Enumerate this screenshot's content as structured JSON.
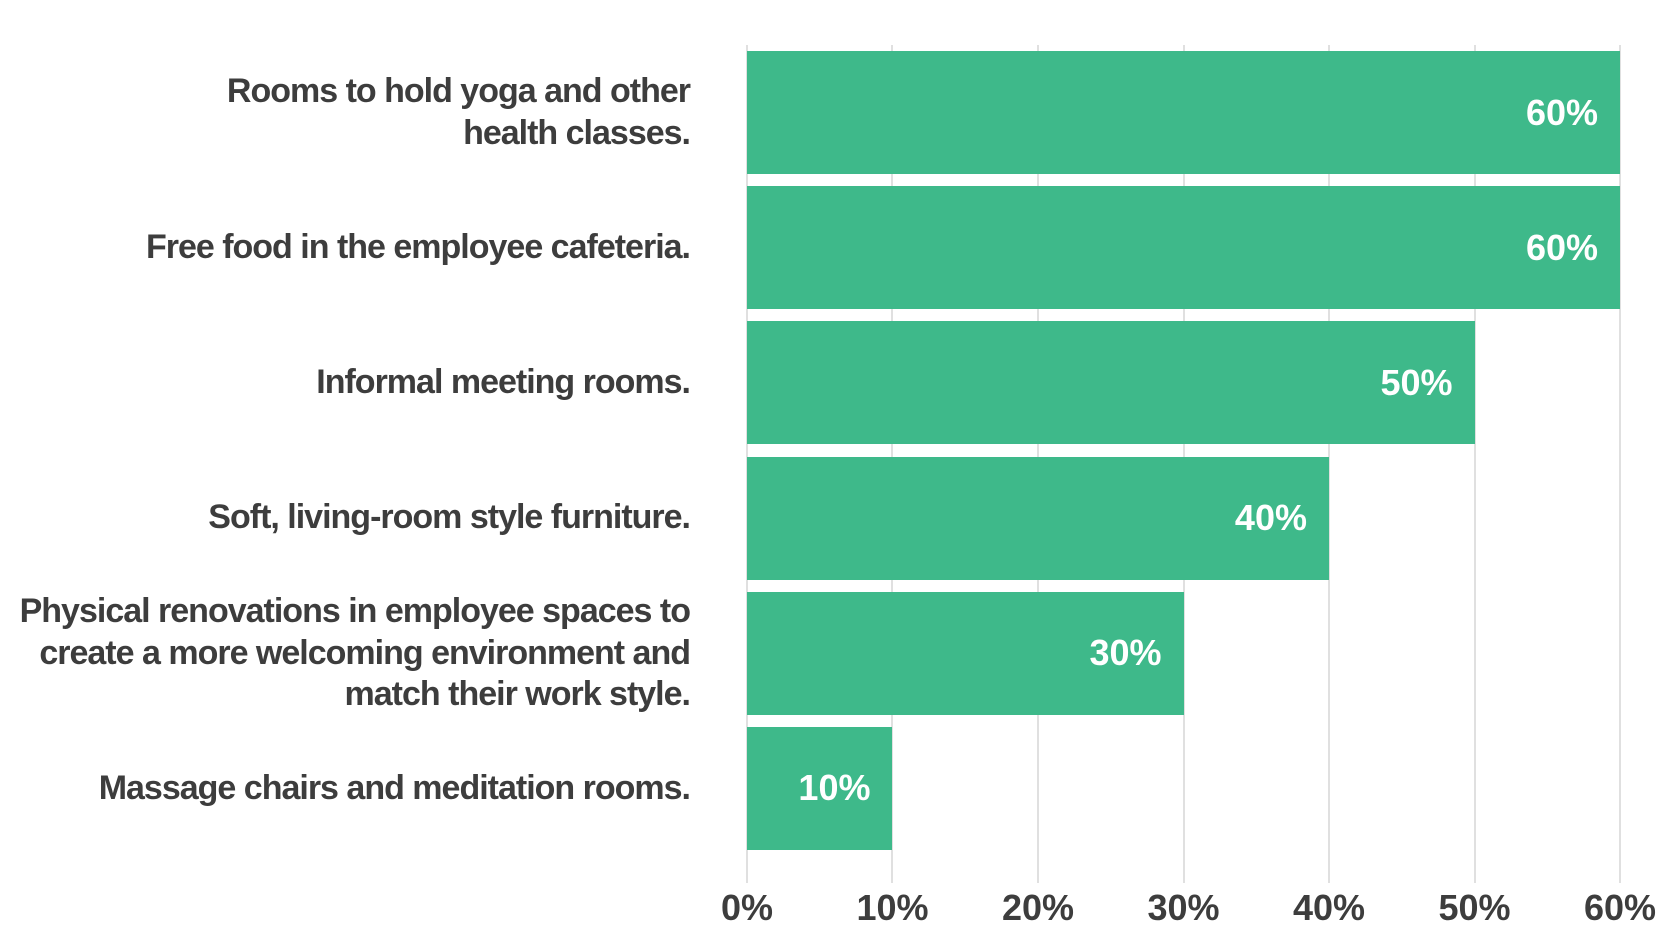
{
  "chart_data": {
    "type": "bar",
    "orientation": "horizontal",
    "title": "",
    "categories": [
      "Rooms to hold yoga and other health classes.",
      "Free food in the employee cafeteria.",
      "Informal meeting rooms.",
      "Soft, living-room style furniture.",
      "Physical renovations in employee spaces to create a more welcoming environment and match their work style.",
      "Massage chairs and meditation rooms."
    ],
    "values": [
      60,
      60,
      50,
      40,
      30,
      10
    ],
    "value_labels": [
      "60%",
      "60%",
      "50%",
      "40%",
      "30%",
      "10%"
    ],
    "x_ticks": [
      "0%",
      "10%",
      "20%",
      "30%",
      "40%",
      "50%",
      "60%"
    ],
    "x_tick_values": [
      0,
      10,
      20,
      30,
      40,
      50,
      60
    ],
    "xlim": [
      0,
      60
    ],
    "grid": "vertical",
    "legend": "none",
    "colors": {
      "bar": "#3eb98a",
      "value_label": "#ffffff",
      "category_label": "#3d3d3d",
      "tick_label": "#3d3d3d",
      "gridline": "#e0e0e0",
      "background": "#ffffff"
    }
  }
}
